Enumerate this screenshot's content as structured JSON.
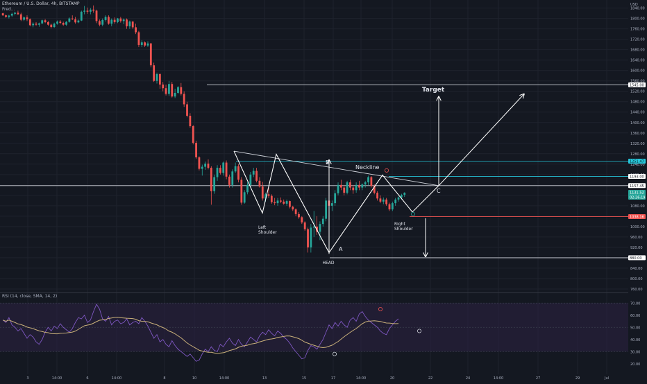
{
  "header": {
    "symbol_title": "Ethereum / U.S. Dollar, 4h, BITSTAMP",
    "subtitle": "Fred..."
  },
  "colors": {
    "background": "#141821",
    "grid": "#1e222d",
    "up": "#26a69a",
    "down": "#ef5350",
    "pattern_line": "#ffffff",
    "level_teal": "#26c6da",
    "level_red": "#ef5350",
    "rsi_line": "#7e57c2",
    "rsi_ma": "#c9b07a",
    "rsi_band": "#2a2140"
  },
  "price_axis": {
    "currency": "USD",
    "ticks": [
      "1840.00",
      "1800.00",
      "1760.00",
      "1720.00",
      "1680.00",
      "1640.00",
      "1600.00",
      "1560.00",
      "1520.00",
      "1480.00",
      "1440.00",
      "1400.00",
      "1360.00",
      "1320.00",
      "1280.00",
      "1240.00",
      "1200.00",
      "1160.00",
      "1120.00",
      "1080.00",
      "1040.00",
      "1000.00",
      "960.00",
      "920.00",
      "880.00",
      "840.00",
      "800.00",
      "760.00"
    ]
  },
  "price_labels": [
    {
      "text": "1545.00",
      "value": 1545,
      "style": "white"
    },
    {
      "text": "1251.47",
      "value": 1251.47,
      "style": "teal"
    },
    {
      "text": "1193.00",
      "value": 1193,
      "style": "white"
    },
    {
      "text": "1157.45",
      "value": 1157.45,
      "style": "white"
    },
    {
      "text": "1131.52",
      "value": 1131.52,
      "style": "up",
      "extra": "02:26:19"
    },
    {
      "text": "1038.16",
      "value": 1038.16,
      "style": "red"
    },
    {
      "text": "880.00",
      "value": 880,
      "style": "white"
    }
  ],
  "annotations": {
    "target": "Target",
    "neckline": "Neckline",
    "left_shoulder_line1": "Left",
    "left_shoulder_line2": "Shoulder",
    "right_shoulder_line1": "Right",
    "right_shoulder_line2": "Shoulder",
    "head": "HEAD",
    "point_a": "A",
    "point_b": "B",
    "point_c": "C"
  },
  "time_axis": {
    "labels": [
      "3",
      "14:00",
      "6",
      "14:00",
      "8",
      "10",
      "14:00",
      "13",
      "15",
      "17",
      "14:00",
      "20",
      "22",
      "24",
      "14:00",
      "27",
      "29",
      "Jul",
      "14:00"
    ]
  },
  "rsi": {
    "title": "RSI (14, close, SMA, 14, 2)",
    "ticks": [
      "70.00",
      "60.00",
      "50.00",
      "40.00",
      "30.00",
      "20.00"
    ],
    "band_top": 70,
    "band_bottom": 30
  },
  "chart_data": {
    "type": "candlestick",
    "title": "Ethereum / U.S. Dollar, 4h, BITSTAMP",
    "ylim": [
      744,
      1855
    ],
    "candles": [
      [
        1820,
        1822,
        1810,
        1812
      ],
      [
        1812,
        1815,
        1803,
        1806
      ],
      [
        1806,
        1814,
        1800,
        1811
      ],
      [
        1811,
        1822,
        1806,
        1818
      ],
      [
        1818,
        1826,
        1812,
        1822
      ],
      [
        1822,
        1830,
        1814,
        1816
      ],
      [
        1816,
        1822,
        1790,
        1795
      ],
      [
        1795,
        1808,
        1790,
        1804
      ],
      [
        1804,
        1812,
        1790,
        1797
      ],
      [
        1797,
        1800,
        1770,
        1774
      ],
      [
        1774,
        1785,
        1766,
        1780
      ],
      [
        1780,
        1786,
        1772,
        1776
      ],
      [
        1776,
        1784,
        1768,
        1781
      ],
      [
        1781,
        1796,
        1778,
        1793
      ],
      [
        1793,
        1798,
        1782,
        1786
      ],
      [
        1786,
        1790,
        1772,
        1776
      ],
      [
        1776,
        1780,
        1762,
        1767
      ],
      [
        1767,
        1784,
        1764,
        1780
      ],
      [
        1780,
        1792,
        1776,
        1788
      ],
      [
        1788,
        1794,
        1778,
        1783
      ],
      [
        1783,
        1788,
        1772,
        1776
      ],
      [
        1776,
        1790,
        1772,
        1787
      ],
      [
        1787,
        1804,
        1784,
        1800
      ],
      [
        1800,
        1812,
        1794,
        1797
      ],
      [
        1797,
        1806,
        1780,
        1785
      ],
      [
        1785,
        1796,
        1782,
        1792
      ],
      [
        1792,
        1830,
        1790,
        1826
      ],
      [
        1826,
        1848,
        1816,
        1830
      ],
      [
        1830,
        1842,
        1818,
        1826
      ],
      [
        1826,
        1840,
        1816,
        1834
      ],
      [
        1834,
        1850,
        1822,
        1830
      ],
      [
        1830,
        1834,
        1782,
        1790
      ],
      [
        1790,
        1796,
        1770,
        1776
      ],
      [
        1776,
        1800,
        1770,
        1794
      ],
      [
        1794,
        1812,
        1788,
        1806
      ],
      [
        1806,
        1812,
        1776,
        1780
      ],
      [
        1780,
        1800,
        1770,
        1795
      ],
      [
        1795,
        1804,
        1780,
        1786
      ],
      [
        1786,
        1802,
        1782,
        1800
      ],
      [
        1800,
        1806,
        1784,
        1790
      ],
      [
        1790,
        1800,
        1778,
        1796
      ],
      [
        1796,
        1800,
        1760,
        1770
      ],
      [
        1770,
        1792,
        1760,
        1788
      ],
      [
        1788,
        1790,
        1760,
        1766
      ],
      [
        1766,
        1780,
        1740,
        1747
      ],
      [
        1747,
        1752,
        1690,
        1698
      ],
      [
        1698,
        1716,
        1690,
        1708
      ],
      [
        1708,
        1712,
        1690,
        1696
      ],
      [
        1696,
        1712,
        1690,
        1704
      ],
      [
        1704,
        1706,
        1612,
        1620
      ],
      [
        1620,
        1630,
        1556,
        1560
      ],
      [
        1560,
        1592,
        1550,
        1586
      ],
      [
        1586,
        1590,
        1530,
        1546
      ],
      [
        1546,
        1556,
        1520,
        1532
      ],
      [
        1532,
        1546,
        1504,
        1510
      ],
      [
        1510,
        1560,
        1502,
        1548
      ],
      [
        1548,
        1556,
        1496,
        1500
      ],
      [
        1500,
        1530,
        1494,
        1514
      ],
      [
        1514,
        1540,
        1510,
        1536
      ],
      [
        1536,
        1552,
        1504,
        1510
      ],
      [
        1510,
        1520,
        1460,
        1470
      ],
      [
        1470,
        1480,
        1420,
        1426
      ],
      [
        1426,
        1436,
        1380,
        1386
      ],
      [
        1386,
        1390,
        1316,
        1322
      ],
      [
        1322,
        1330,
        1260,
        1266
      ],
      [
        1266,
        1270,
        1216,
        1222
      ],
      [
        1222,
        1238,
        1196,
        1230
      ],
      [
        1230,
        1250,
        1218,
        1242
      ],
      [
        1242,
        1258,
        1220,
        1226
      ],
      [
        1226,
        1232,
        1084,
        1136
      ],
      [
        1136,
        1200,
        1126,
        1190
      ],
      [
        1190,
        1236,
        1176,
        1226
      ],
      [
        1226,
        1236,
        1200,
        1206
      ],
      [
        1206,
        1250,
        1196,
        1246
      ],
      [
        1246,
        1254,
        1182,
        1192
      ],
      [
        1192,
        1200,
        1150,
        1160
      ],
      [
        1160,
        1220,
        1150,
        1212
      ],
      [
        1212,
        1246,
        1206,
        1232
      ],
      [
        1232,
        1240,
        1170,
        1180
      ],
      [
        1180,
        1190,
        1084,
        1092
      ],
      [
        1092,
        1140,
        1088,
        1132
      ],
      [
        1132,
        1172,
        1124,
        1160
      ],
      [
        1160,
        1210,
        1150,
        1200
      ],
      [
        1200,
        1226,
        1190,
        1214
      ],
      [
        1214,
        1226,
        1170,
        1176
      ],
      [
        1176,
        1190,
        1150,
        1154
      ],
      [
        1154,
        1172,
        1100,
        1108
      ],
      [
        1108,
        1130,
        1096,
        1124
      ],
      [
        1124,
        1150,
        1110,
        1118
      ],
      [
        1118,
        1124,
        1088,
        1094
      ],
      [
        1094,
        1110,
        1082,
        1090
      ],
      [
        1090,
        1110,
        1080,
        1100
      ],
      [
        1100,
        1112,
        1090,
        1096
      ],
      [
        1096,
        1104,
        1084,
        1088
      ],
      [
        1088,
        1104,
        1080,
        1098
      ],
      [
        1098,
        1100,
        1070,
        1076
      ],
      [
        1076,
        1080,
        1060,
        1066
      ],
      [
        1066,
        1070,
        1040,
        1048
      ],
      [
        1048,
        1056,
        1030,
        1036
      ],
      [
        1036,
        1040,
        1010,
        1016
      ],
      [
        1016,
        1020,
        984,
        990
      ],
      [
        990,
        996,
        900,
        920
      ],
      [
        920,
        1010,
        900,
        996
      ],
      [
        996,
        1060,
        960,
        1000
      ],
      [
        1000,
        1040,
        968,
        980
      ],
      [
        980,
        1020,
        948,
        1010
      ],
      [
        1010,
        1040,
        1000,
        1030
      ],
      [
        1030,
        1110,
        1020,
        1100
      ],
      [
        1100,
        1110,
        1070,
        1080
      ],
      [
        1080,
        1100,
        1060,
        1090
      ],
      [
        1090,
        1140,
        1080,
        1128
      ],
      [
        1128,
        1170,
        1120,
        1160
      ],
      [
        1160,
        1180,
        1140,
        1150
      ],
      [
        1150,
        1160,
        1120,
        1130
      ],
      [
        1130,
        1176,
        1124,
        1170
      ],
      [
        1170,
        1180,
        1140,
        1150
      ],
      [
        1150,
        1160,
        1126,
        1140
      ],
      [
        1140,
        1170,
        1130,
        1160
      ],
      [
        1160,
        1176,
        1140,
        1150
      ],
      [
        1150,
        1166,
        1140,
        1162
      ],
      [
        1162,
        1176,
        1150,
        1170
      ],
      [
        1170,
        1196,
        1160,
        1190
      ],
      [
        1190,
        1194,
        1150,
        1156
      ],
      [
        1156,
        1162,
        1124,
        1130
      ],
      [
        1130,
        1136,
        1100,
        1108
      ],
      [
        1108,
        1120,
        1090,
        1096
      ],
      [
        1096,
        1112,
        1086,
        1104
      ],
      [
        1104,
        1110,
        1080,
        1086
      ],
      [
        1086,
        1092,
        1060,
        1066
      ],
      [
        1066,
        1096,
        1060,
        1090
      ],
      [
        1090,
        1110,
        1080,
        1104
      ],
      [
        1104,
        1116,
        1096,
        1112
      ],
      [
        1112,
        1126,
        1104,
        1122
      ],
      [
        1122,
        1132,
        1114,
        1130
      ]
    ],
    "levels": [
      1545,
      1251.47,
      1193,
      1157.45,
      1038.16,
      880
    ],
    "pattern": {
      "left_shoulder": [
        1290,
        1040
      ],
      "neckline": [
        [
          1290,
          1157.45
        ]
      ],
      "head_low": 880,
      "target": 1545
    },
    "rsi": {
      "ylim": [
        17,
        73
      ],
      "values": [
        56,
        54,
        58,
        52,
        50,
        47,
        49,
        45,
        41,
        44,
        42,
        38,
        36,
        40,
        46,
        50,
        47,
        51,
        49,
        53,
        50,
        48,
        46,
        49,
        54,
        58,
        57,
        60,
        54,
        56,
        63,
        69,
        65,
        57,
        55,
        59,
        52,
        55,
        56,
        53,
        54,
        57,
        52,
        54,
        55,
        53,
        58,
        55,
        51,
        46,
        41,
        44,
        38,
        40,
        36,
        34,
        39,
        35,
        32,
        30,
        28,
        26,
        28,
        25,
        22,
        23,
        28,
        32,
        30,
        34,
        31,
        30,
        36,
        34,
        38,
        41,
        37,
        35,
        40,
        36,
        34,
        38,
        42,
        40,
        38,
        43,
        46,
        44,
        48,
        45,
        43,
        47,
        45,
        42,
        40,
        37,
        33,
        30,
        27,
        24,
        25,
        31,
        35,
        34,
        32,
        36,
        40,
        46,
        52,
        49,
        54,
        51,
        55,
        52,
        50,
        56,
        58,
        55,
        61,
        63,
        59,
        56,
        54,
        52,
        50,
        47,
        45,
        44,
        49,
        52,
        55,
        57
      ]
    }
  }
}
